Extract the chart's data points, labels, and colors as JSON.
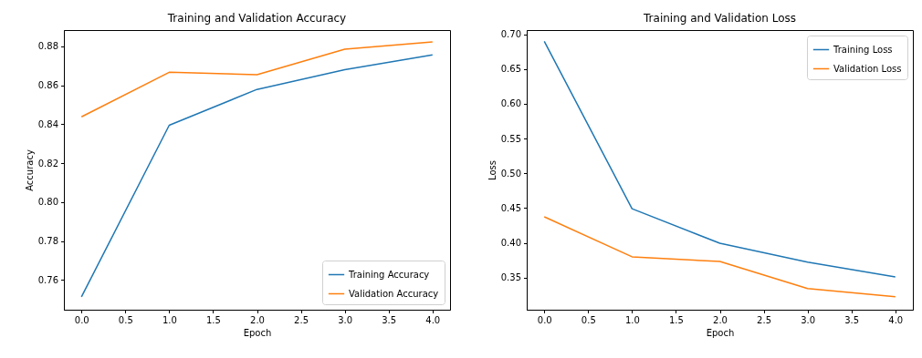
{
  "chart_data": [
    {
      "type": "line",
      "title": "Training and Validation Accuracy",
      "xlabel": "Epoch",
      "ylabel": "Accuracy",
      "x": [
        0,
        1,
        2,
        3,
        4
      ],
      "series": [
        {
          "name": "Training Accuracy",
          "color": "#1f77b4",
          "values": [
            0.7513,
            0.8395,
            0.8579,
            0.868,
            0.8756
          ]
        },
        {
          "name": "Validation Accuracy",
          "color": "#ff7f0e",
          "values": [
            0.8438,
            0.8667,
            0.8655,
            0.8786,
            0.8823
          ]
        }
      ],
      "xlim": [
        -0.2,
        4.2
      ],
      "xticks": [
        {
          "value": 0,
          "label": "0.0"
        },
        0.5,
        {
          "value": 1,
          "label": "1.0"
        },
        1.5,
        {
          "value": 2,
          "label": "2.0"
        },
        2.5,
        {
          "value": 3,
          "label": "3.0"
        },
        3.5,
        {
          "value": 4,
          "label": "4.0"
        }
      ],
      "ylim": [
        0.7447,
        0.8884
      ],
      "yticks": [
        0.76,
        0.78,
        {
          "value": 0.8,
          "label": "0.80"
        },
        0.82,
        0.84,
        0.86,
        0.88
      ],
      "legend": "bottom right"
    },
    {
      "type": "line",
      "title": "Training and Validation Loss",
      "xlabel": "Epoch",
      "ylabel": "Loss",
      "x": [
        0,
        1,
        2,
        3,
        4
      ],
      "series": [
        {
          "name": "Training Loss",
          "color": "#1f77b4",
          "values": [
            0.69,
            0.4491,
            0.3994,
            0.3723,
            0.3509
          ]
        },
        {
          "name": "Validation Loss",
          "color": "#ff7f0e",
          "values": [
            0.4374,
            0.3799,
            0.3732,
            0.3343,
            0.3225
          ]
        }
      ],
      "xlim": [
        -0.2,
        4.2
      ],
      "xticks": [
        {
          "value": 0,
          "label": "0.0"
        },
        0.5,
        {
          "value": 1,
          "label": "1.0"
        },
        1.5,
        {
          "value": 2,
          "label": "2.0"
        },
        2.5,
        {
          "value": 3,
          "label": "3.0"
        },
        3.5,
        {
          "value": 4,
          "label": "4.0"
        }
      ],
      "ylim": [
        0.3038,
        0.7061
      ],
      "yticks": [
        0.35,
        {
          "value": 0.4,
          "label": "0.40"
        },
        0.45,
        {
          "value": 0.5,
          "label": "0.50"
        },
        0.55,
        {
          "value": 0.6,
          "label": "0.60"
        },
        0.65,
        {
          "value": 0.7,
          "label": "0.70"
        }
      ],
      "legend": "top right"
    }
  ]
}
